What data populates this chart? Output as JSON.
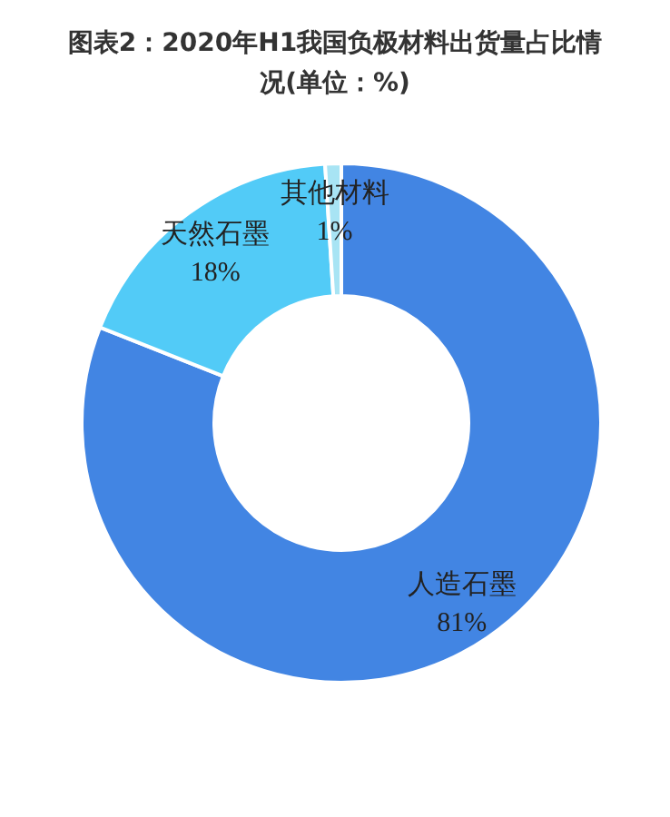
{
  "chart_data": {
    "type": "donut",
    "title": "图表2：2020年H1我国负极材料出货量占比情况(单位：%)",
    "categories": [
      "人造石墨",
      "天然石墨",
      "其他材料"
    ],
    "values": [
      81,
      18,
      1
    ],
    "colors": [
      "#4285e3",
      "#52cbf7",
      "#a8e4f4"
    ],
    "value_labels": [
      "81%",
      "18%",
      "1%"
    ],
    "legend": false
  }
}
